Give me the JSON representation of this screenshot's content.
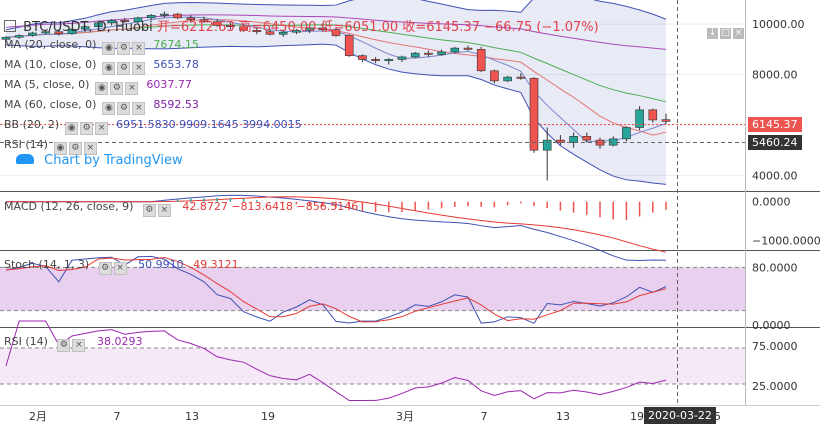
{
  "header": {
    "symbol": "BTC/USDT, D, Huobi",
    "open": "开=6212.63",
    "high": "高=6450.00",
    "low": "低=6051.00",
    "close": "收=6145.37",
    "change": "−66.75 (−1.07%)"
  },
  "legend": [
    {
      "name": "MA (20, close, 0)",
      "value": "7674.15",
      "color": "#4caf50"
    },
    {
      "name": "MA (10, close, 0)",
      "value": "5653.78",
      "color": "#3f51b5"
    },
    {
      "name": "MA (5, close, 0)",
      "value": "6037.77",
      "color": "#9c27b0"
    },
    {
      "name": "MA (60, close, 0)",
      "value": "8592.53",
      "color": "#7b1fa2"
    },
    {
      "name": "BB (20, 2)",
      "value": "6951.5830  9909.1645  3994.0015",
      "color": "#3f51b5"
    },
    {
      "name": "RSI (14)",
      "value": "",
      "color": "#888888"
    }
  ],
  "watermark": "Chart by TradingView",
  "price_axis": {
    "ticks": [
      "10000.00",
      "8000.00",
      "6000.00",
      "4000.00"
    ],
    "last_price": "6145.37",
    "cursor_price": "5460.24",
    "last_color": "#ef5350",
    "cursor_color": "#333333"
  },
  "macd": {
    "name": "MACD (12, 26, close, 9)",
    "values": "42.8727  −813.6418  −856.5146",
    "ticks": [
      "0.0000",
      "−1000.0000"
    ]
  },
  "stoch": {
    "name": "Stoch (14, 1, 3)",
    "k": "50.9910",
    "d": "49.3121",
    "ticks": [
      "80.0000",
      "0.0000"
    ]
  },
  "rsi": {
    "name": "RSI (14)",
    "value": "38.0293",
    "ticks": [
      "75.0000",
      "25.0000"
    ]
  },
  "time_axis": {
    "labels": [
      "2月",
      "7",
      "13",
      "19",
      "3月",
      "7",
      "13",
      "19",
      "25"
    ],
    "cursor_date": "2020-03-22"
  },
  "window_buttons": [
    "↓",
    "□",
    "×"
  ],
  "chart_data": {
    "type": "candlestick",
    "candles": [
      [
        9400,
        9520,
        9350,
        9480
      ],
      [
        9480,
        9600,
        9420,
        9550
      ],
      [
        9550,
        9700,
        9500,
        9650
      ],
      [
        9650,
        9780,
        9600,
        9700
      ],
      [
        9700,
        9800,
        9550,
        9620
      ],
      [
        9620,
        9850,
        9580,
        9800
      ],
      [
        9800,
        9950,
        9700,
        9900
      ],
      [
        9900,
        10100,
        9850,
        10050
      ],
      [
        10050,
        10200,
        9950,
        10150
      ],
      [
        10150,
        10250,
        10050,
        10100
      ],
      [
        10100,
        10300,
        10000,
        10250
      ],
      [
        10250,
        10400,
        10150,
        10350
      ],
      [
        10350,
        10500,
        10250,
        10400
      ],
      [
        10400,
        10450,
        10200,
        10250
      ],
      [
        10250,
        10350,
        10100,
        10180
      ],
      [
        10180,
        10300,
        10050,
        10100
      ],
      [
        10100,
        10200,
        9900,
        9950
      ],
      [
        9950,
        10050,
        9800,
        9900
      ],
      [
        9900,
        10000,
        9700,
        9750
      ],
      [
        9750,
        9850,
        9600,
        9700
      ],
      [
        9700,
        9800,
        9550,
        9600
      ],
      [
        9600,
        9750,
        9500,
        9680
      ],
      [
        9680,
        9800,
        9600,
        9750
      ],
      [
        9750,
        9900,
        9650,
        9850
      ],
      [
        9850,
        9950,
        9700,
        9780
      ],
      [
        9780,
        9850,
        9500,
        9550
      ],
      [
        9550,
        9600,
        8700,
        8750
      ],
      [
        8750,
        8800,
        8500,
        8600
      ],
      [
        8600,
        8700,
        8450,
        8550
      ],
      [
        8550,
        8650,
        8400,
        8600
      ],
      [
        8600,
        8750,
        8500,
        8700
      ],
      [
        8700,
        8900,
        8650,
        8850
      ],
      [
        8850,
        8950,
        8700,
        8800
      ],
      [
        8800,
        9000,
        8750,
        8900
      ],
      [
        8900,
        9100,
        8850,
        9050
      ],
      [
        9050,
        9150,
        8950,
        9000
      ],
      [
        9000,
        9100,
        8100,
        8150
      ],
      [
        8150,
        8200,
        7650,
        7750
      ],
      [
        7750,
        7950,
        7700,
        7900
      ],
      [
        7900,
        8050,
        7800,
        7850
      ],
      [
        7850,
        7900,
        4900,
        5000
      ],
      [
        5000,
        5900,
        3800,
        5400
      ],
      [
        5400,
        5600,
        5200,
        5300
      ],
      [
        5300,
        5700,
        5100,
        5550
      ],
      [
        5550,
        5700,
        5300,
        5400
      ],
      [
        5400,
        5500,
        5050,
        5200
      ],
      [
        5200,
        5550,
        5150,
        5450
      ],
      [
        5450,
        5950,
        5350,
        5900
      ],
      [
        5900,
        6750,
        5800,
        6600
      ],
      [
        6600,
        6650,
        6100,
        6200
      ],
      [
        6212,
        6450,
        6051,
        6145
      ]
    ],
    "title": "BTC/USDT, D, Huobi"
  }
}
